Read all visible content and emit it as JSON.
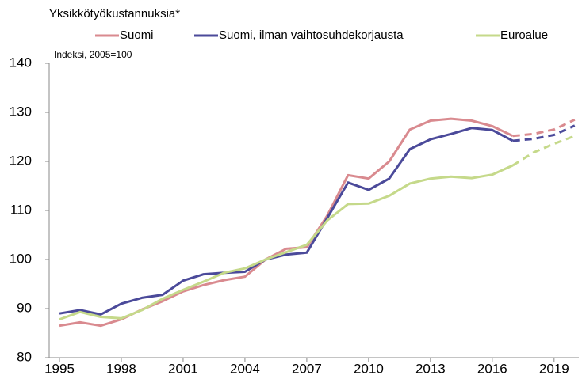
{
  "chart_data": {
    "type": "line",
    "title": "Yksikkötyökustannuksia*",
    "subtitle": "Indeksi, 2005=100",
    "x": [
      1995,
      1996,
      1997,
      1998,
      1999,
      2000,
      2001,
      2002,
      2003,
      2004,
      2005,
      2006,
      2007,
      2008,
      2009,
      2010,
      2011,
      2012,
      2013,
      2014,
      2015,
      2016,
      2017,
      2018,
      2019,
      2020
    ],
    "dashed_from": 2017,
    "series": [
      {
        "name": "Suomi",
        "color": "#d98a8f",
        "values": [
          86.5,
          87.2,
          86.5,
          87.8,
          89.8,
          91.5,
          93.5,
          94.8,
          95.8,
          96.5,
          100,
          102.2,
          102.5,
          109,
          117.2,
          116.5,
          120,
          126.5,
          128.3,
          128.7,
          128.3,
          127.2,
          125.2,
          125.6,
          126.5,
          128.5
        ]
      },
      {
        "name": "Suomi, ilman vaihtosuhdekorjausta",
        "color": "#4b4a9a",
        "values": [
          89,
          89.7,
          88.8,
          91,
          92.2,
          92.8,
          95.7,
          97,
          97.3,
          97.5,
          100,
          101,
          101.4,
          108.5,
          115.7,
          114.2,
          116.5,
          122.5,
          124.5,
          125.6,
          126.8,
          126.4,
          124.2,
          124.6,
          125.4,
          127.3
        ]
      },
      {
        "name": "Euroalue",
        "color": "#c5d98a",
        "values": [
          87.8,
          89.3,
          88.3,
          88,
          89.7,
          92,
          93.8,
          95.5,
          97.3,
          98.2,
          100,
          101.5,
          103,
          108,
          111.3,
          111.4,
          113,
          115.5,
          116.5,
          116.9,
          116.6,
          117.3,
          119.2,
          121.8,
          123.6,
          125.2
        ]
      }
    ],
    "xlim": [
      1994.5,
      2020.2
    ],
    "xticks": [
      1995,
      1998,
      2001,
      2004,
      2007,
      2010,
      2013,
      2016,
      2019
    ],
    "ylim": [
      80,
      140
    ],
    "yticks": [
      80,
      90,
      100,
      110,
      120,
      130,
      140
    ],
    "grid": false,
    "legend": "top"
  }
}
